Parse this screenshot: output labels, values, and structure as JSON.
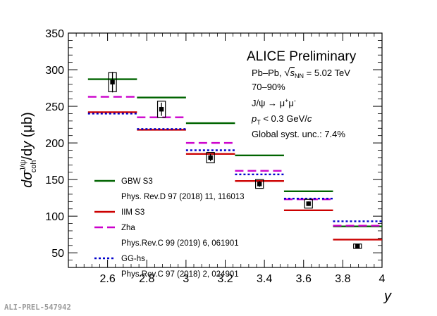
{
  "chart_data": {
    "type": "step",
    "title": "ALICE Preliminary",
    "xlabel": "y",
    "ylabel": "dσ_coh^{J/ψ}/dy (μb)",
    "xlim": [
      2.4,
      4.0
    ],
    "ylim": [
      30,
      350
    ],
    "x_ticks": [
      "2.6",
      "2.8",
      "3",
      "3.2",
      "3.4",
      "3.6",
      "3.8",
      "4"
    ],
    "y_ticks": [
      "50",
      "100",
      "150",
      "200",
      "250",
      "300",
      "350"
    ],
    "bins": [
      [
        2.5,
        2.75
      ],
      [
        2.75,
        3.0
      ],
      [
        3.0,
        3.25
      ],
      [
        3.25,
        3.5
      ],
      [
        3.5,
        3.75
      ],
      [
        3.75,
        4.0
      ]
    ],
    "data": {
      "name": "ALICE data",
      "x": [
        2.625,
        2.875,
        3.125,
        3.375,
        3.625,
        3.875
      ],
      "y": [
        283,
        246,
        180,
        144,
        117,
        59
      ],
      "stat_err": [
        14,
        9,
        5,
        4,
        3,
        2
      ],
      "syst_box_halfwidth_x": 0.02,
      "syst_box_halfheight_y": [
        13,
        11,
        7,
        6,
        6,
        3
      ]
    },
    "series": [
      {
        "name": "GBW S3",
        "color": "#006400",
        "dash": "solid",
        "values": [
          287,
          262,
          227,
          183,
          134,
          86
        ]
      },
      {
        "name": "IIM S3",
        "color": "#cc0000",
        "dash": "solid",
        "values": [
          242,
          218,
          185,
          148,
          108,
          68
        ]
      },
      {
        "name": "Zha",
        "color": "#cc00cc",
        "dash": "longdash",
        "values": [
          263,
          235,
          200,
          162,
          123,
          87
        ]
      },
      {
        "name": "GG-hs",
        "color": "#0000cc",
        "dash": "dotted",
        "values": [
          240,
          219,
          190,
          157,
          124,
          93
        ]
      }
    ],
    "annotations": [
      "Pb–Pb, √s_NN = 5.02 TeV",
      "70–90%",
      "J/ψ → μ⁺μ⁻",
      "p_T < 0.3 GeV/c",
      "Global syst. unc.: 7.4%"
    ],
    "legend": [
      {
        "series": "GBW S3",
        "label": "GBW S3",
        "ref": "Phys. Rev.D 97 (2018) 11, 116013"
      },
      {
        "series": "IIM S3",
        "label": "IIM S3",
        "ref": ""
      },
      {
        "series": "Zha",
        "label": "Zha",
        "ref": "Phys.Rev.C 99 (2019) 6, 061901"
      },
      {
        "series": "GG-hs",
        "label": "GG-hs",
        "ref": "Phys.Rev.C 97 (2018) 2, 024901"
      }
    ],
    "legend_position": "bottom-left",
    "footer_id": "ALI-PREL-547942"
  },
  "text": {
    "title": "ALICE Preliminary",
    "ann_system_a": "Pb–Pb, ",
    "ann_system_b": " = 5.02 TeV",
    "ann_centrality": "70–90%",
    "ann_pt_b": " < 0.3 GeV/",
    "ann_syst": "Global syst. unc.: 7.4%",
    "footer_id": "ALI-PREL-547942"
  }
}
